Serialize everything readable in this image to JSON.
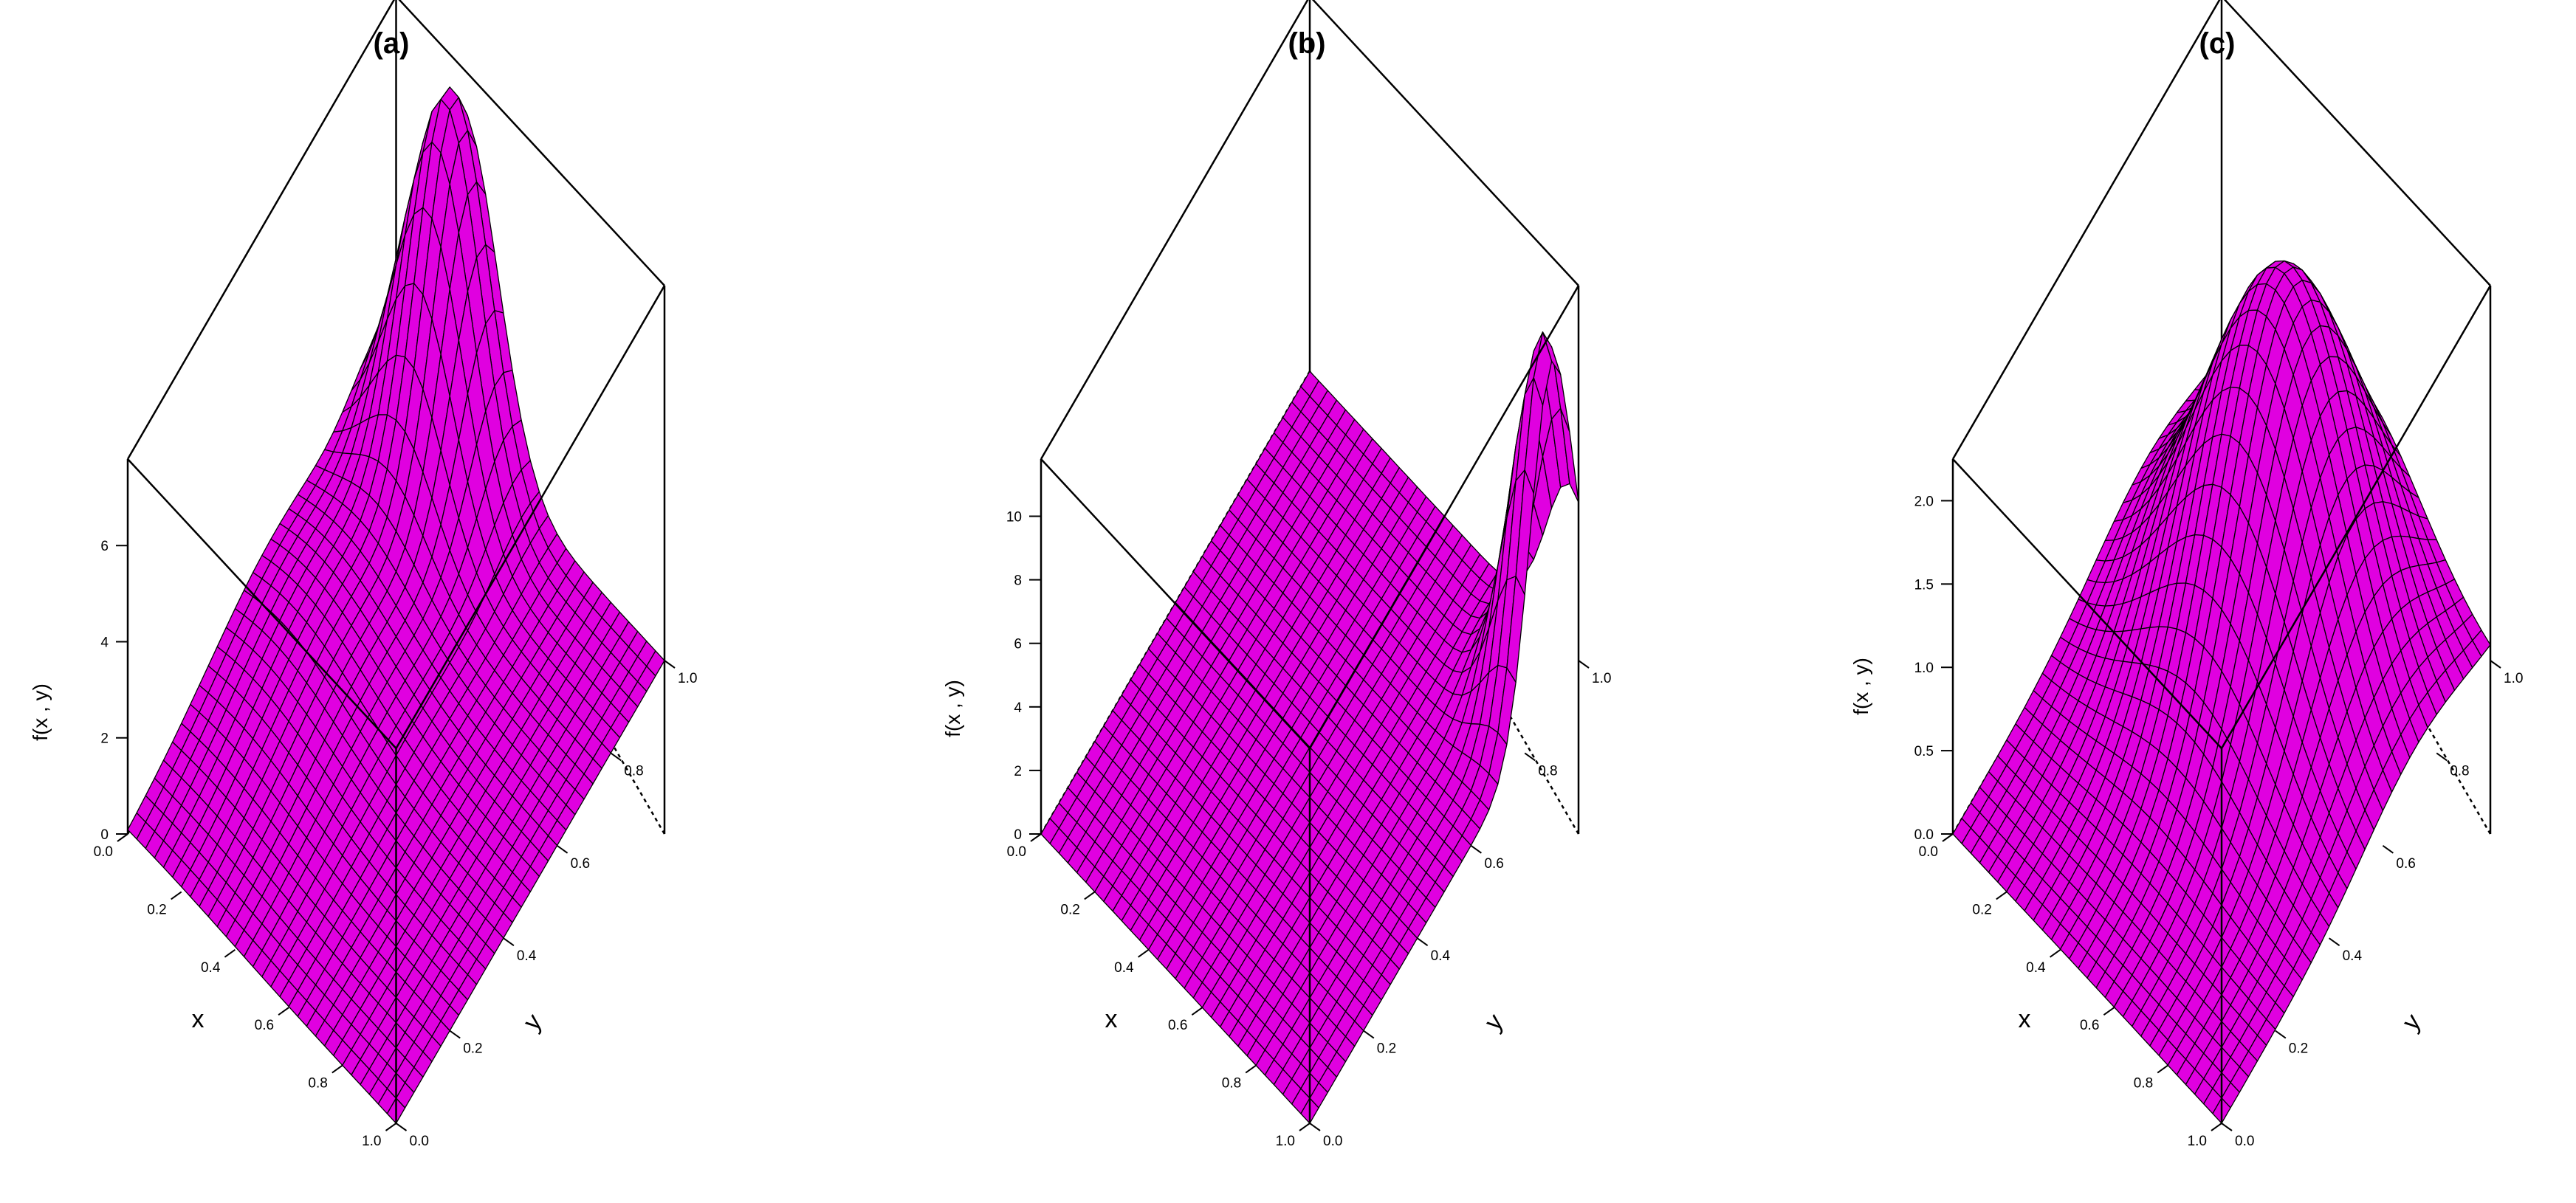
{
  "colors": {
    "surface_fill": "#e000e0",
    "mesh_line": "#000000",
    "box_line": "#000000",
    "background": "#ffffff"
  },
  "chart_data": [
    {
      "type": "surface",
      "title": "(a)",
      "xlabel": "x",
      "ylabel": "y",
      "zlabel": "f(x , y)",
      "xlim": [
        0,
        1
      ],
      "ylim": [
        0,
        1
      ],
      "zlim": [
        0,
        7.8
      ],
      "x_ticks": [
        "0.0",
        "0.2",
        "0.4",
        "0.6",
        "0.8",
        "1.0"
      ],
      "y_ticks": [
        "0.0",
        "0.2",
        "0.4",
        "0.6",
        "0.8",
        "1.0"
      ],
      "z_ticks": [
        {
          "value": 0,
          "label": "0"
        },
        {
          "value": 2,
          "label": "2"
        },
        {
          "value": 4,
          "label": "4"
        },
        {
          "value": 6,
          "label": "6"
        }
      ],
      "grid_n": 30,
      "surface": {
        "bumps": [
          {
            "amp": 7.5,
            "mx": 0.25,
            "my": 0.95,
            "sx": 0.13,
            "sy": 0.11
          },
          {
            "amp": 1.2,
            "mx": 0.15,
            "my": 0.55,
            "sx": 0.25,
            "sy": 0.25
          }
        ]
      }
    },
    {
      "type": "surface",
      "title": "(b)",
      "xlabel": "x",
      "ylabel": "y",
      "zlabel": "f(x , y)",
      "xlim": [
        0,
        1
      ],
      "ylim": [
        0,
        1
      ],
      "zlim": [
        0,
        11.8
      ],
      "x_ticks": [
        "0.0",
        "0.2",
        "0.4",
        "0.6",
        "0.8",
        "1.0"
      ],
      "y_ticks": [
        "0.0",
        "0.2",
        "0.4",
        "0.6",
        "0.8",
        "1.0"
      ],
      "z_ticks": [
        {
          "value": 0,
          "label": "0"
        },
        {
          "value": 2,
          "label": "2"
        },
        {
          "value": 4,
          "label": "4"
        },
        {
          "value": 6,
          "label": "6"
        },
        {
          "value": 8,
          "label": "8"
        },
        {
          "value": 10,
          "label": "10"
        }
      ],
      "grid_n": 30,
      "surface": {
        "bumps": [
          {
            "amp": 11.5,
            "mx": 0.97,
            "my": 0.9,
            "sx": 0.09,
            "sy": 0.08
          }
        ]
      }
    },
    {
      "type": "surface",
      "title": "(c)",
      "xlabel": "x",
      "ylabel": "y",
      "zlabel": "f(x , y)",
      "xlim": [
        0,
        1
      ],
      "ylim": [
        0,
        1
      ],
      "zlim": [
        0,
        2.25
      ],
      "x_ticks": [
        "0.0",
        "0.2",
        "0.4",
        "0.6",
        "0.8",
        "1.0"
      ],
      "y_ticks": [
        "0.0",
        "0.2",
        "0.4",
        "0.6",
        "0.8",
        "1.0"
      ],
      "z_ticks": [
        {
          "value": 0,
          "label": "0.0"
        },
        {
          "value": 0.5,
          "label": "0.5"
        },
        {
          "value": 1,
          "label": "1.0"
        },
        {
          "value": 1.5,
          "label": "1.5"
        },
        {
          "value": 2,
          "label": "2.0"
        }
      ],
      "grid_n": 30,
      "surface": {
        "bumps": [
          {
            "amp": 2.2,
            "mx": 0.5,
            "my": 0.72,
            "sx": 0.24,
            "sy": 0.2
          }
        ]
      }
    }
  ]
}
